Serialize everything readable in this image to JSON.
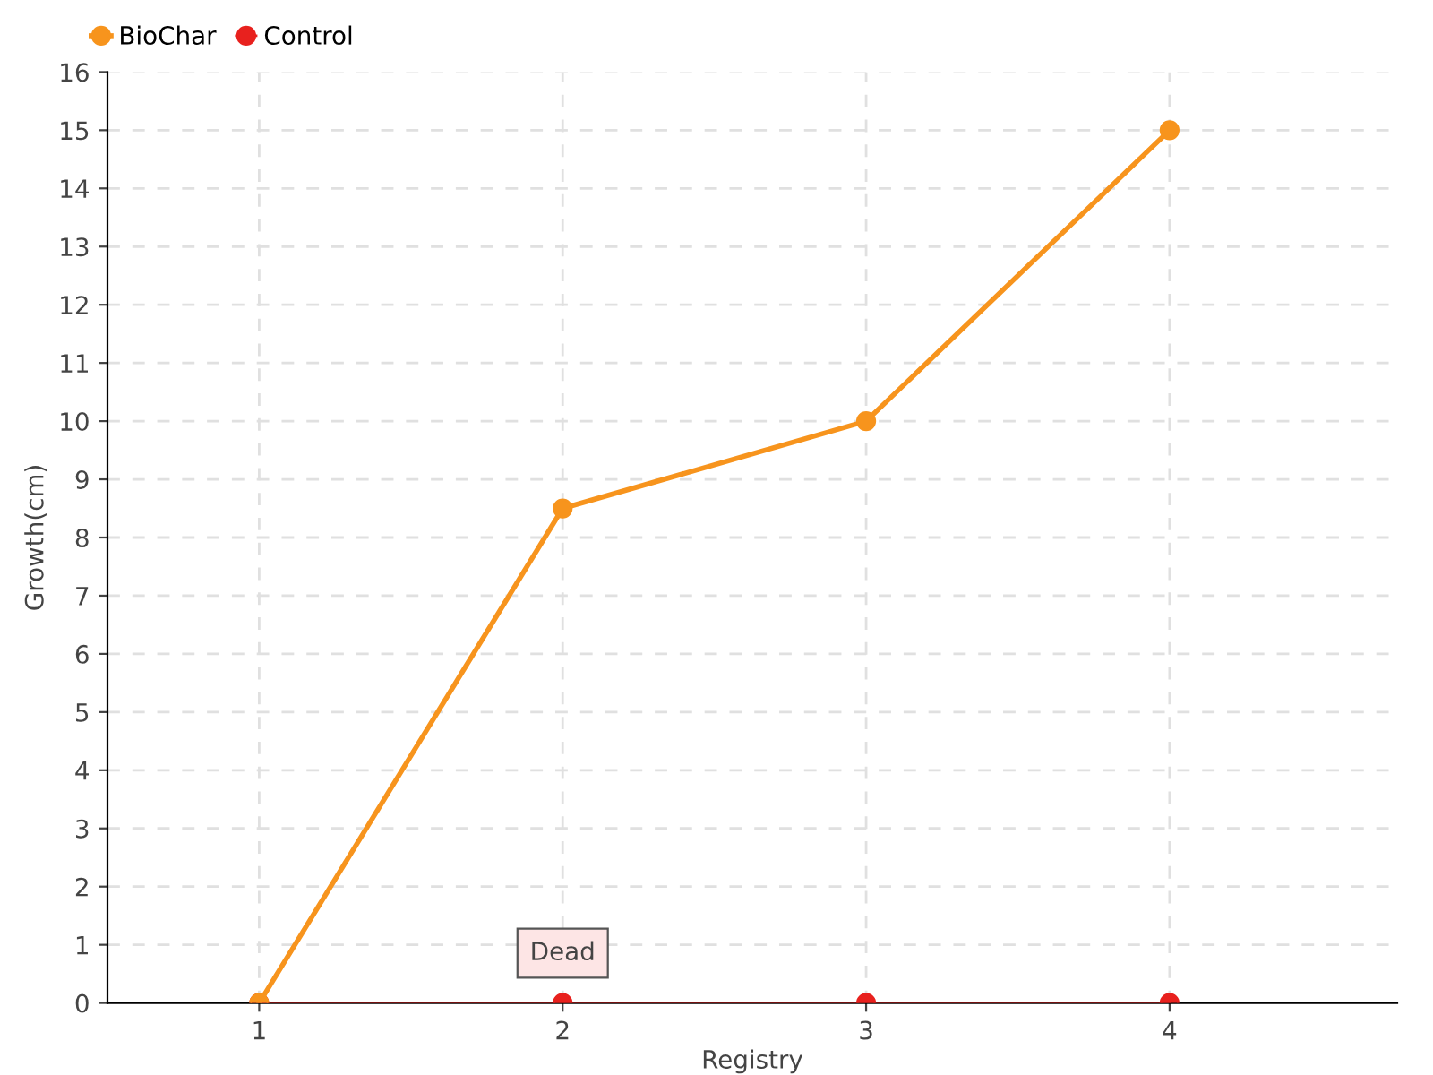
{
  "chart_data": {
    "type": "line",
    "xlabel": "Registry",
    "ylabel": "Growth(cm)",
    "categories": [
      "1",
      "2",
      "3",
      "4"
    ],
    "series": [
      {
        "name": "BioChar",
        "color": "#f7941d",
        "values": [
          0,
          8.5,
          10,
          15
        ]
      },
      {
        "name": "Control",
        "color": "#e8211e",
        "values": [
          0,
          0,
          0,
          0
        ]
      }
    ],
    "ylim": [
      0,
      16
    ],
    "yticks": [
      0,
      1,
      2,
      3,
      4,
      5,
      6,
      7,
      8,
      9,
      10,
      11,
      12,
      13,
      14,
      15,
      16
    ],
    "grid": true,
    "legend": "top left",
    "marker": "circle",
    "line_style": "solid",
    "annotations": [
      {
        "text": "Dead",
        "x": "2",
        "y": 0
      }
    ]
  }
}
